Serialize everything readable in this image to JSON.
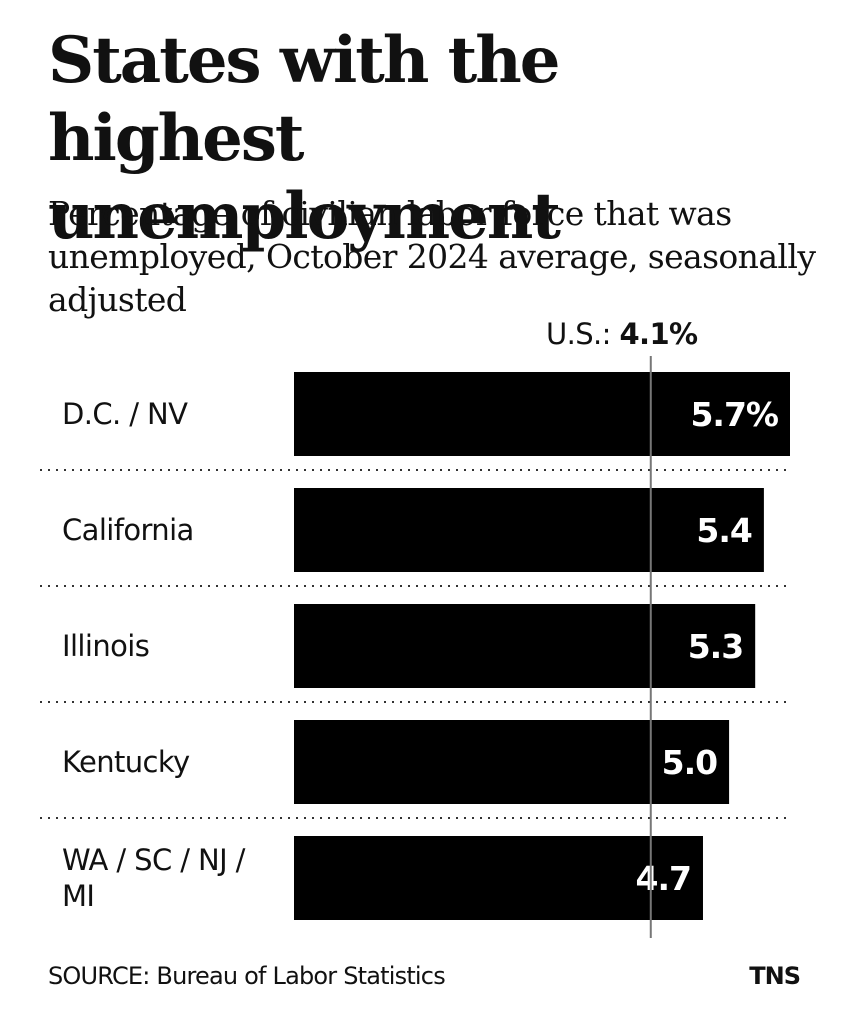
{
  "chart_data": {
    "type": "bar",
    "orientation": "horizontal",
    "title": "States with the highest unemployment",
    "subtitle": "Percentage of civilian labor force that was unemployed, October 2024 average, seasonally adjusted",
    "categories": [
      "D.C. / NV",
      "California",
      "Illinois",
      "Kentucky",
      "WA / SC / NJ / MI"
    ],
    "values": [
      5.7,
      5.4,
      5.3,
      5.0,
      4.7
    ],
    "value_labels": [
      "5.7%",
      "5.4",
      "5.3",
      "5.0",
      "4.7"
    ],
    "reference_line": {
      "label": "U.S.:",
      "value": 4.1,
      "value_label": "4.1%"
    },
    "xlim": [
      0,
      5.7
    ],
    "bar_color": "#000000",
    "value_label_color": "#ffffff",
    "separator_style": "dotted",
    "xlabel": "",
    "ylabel": "",
    "grid": false,
    "legend": false
  },
  "footer": {
    "source": "SOURCE: Bureau of Labor Statistics",
    "credit": "TNS"
  }
}
